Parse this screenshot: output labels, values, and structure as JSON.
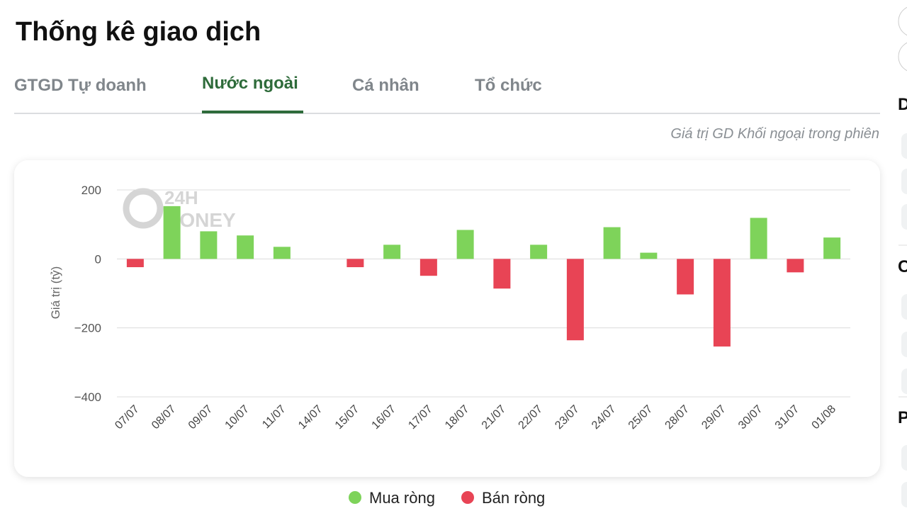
{
  "header": {
    "title": "Thống kê giao dịch"
  },
  "tabs": [
    "GTGD Tự doanh",
    "Nước ngoài",
    "Cá nhân",
    "Tổ chức"
  ],
  "active_tab": "Nước ngoài",
  "subtitle": "Giá trị GD Khối ngoại trong phiên",
  "watermark": {
    "line1": "24H",
    "line2": "MONEY"
  },
  "sidebar": [
    "D",
    "C",
    "P"
  ],
  "chart_data": {
    "type": "bar",
    "y_label": "Giá trị (tỷ)",
    "categories": [
      "07/07",
      "08/07",
      "09/07",
      "10/07",
      "11/07",
      "14/07",
      "15/07",
      "16/07",
      "17/07",
      "18/07",
      "21/07",
      "22/07",
      "23/07",
      "24/07",
      "25/07",
      "28/07",
      "29/07",
      "30/07",
      "31/07",
      "01/08"
    ],
    "series": [
      {
        "name": "Mua ròng",
        "color": "#7ed35a",
        "values": [
          null,
          153,
          80,
          68,
          35,
          null,
          null,
          41,
          null,
          84,
          null,
          41,
          null,
          92,
          18,
          null,
          null,
          119,
          null,
          62
        ]
      },
      {
        "name": "Bán ròng",
        "color": "#e84455",
        "values": [
          -24,
          null,
          null,
          null,
          null,
          null,
          -24,
          null,
          -49,
          null,
          -86,
          null,
          -236,
          null,
          null,
          -103,
          -254,
          null,
          -39,
          null
        ]
      }
    ],
    "ylim": [
      -400,
      200
    ],
    "yticks": [
      {
        "value": -400,
        "label": "−400"
      },
      {
        "value": -200,
        "label": "−200"
      },
      0,
      200
    ],
    "grid": true
  }
}
